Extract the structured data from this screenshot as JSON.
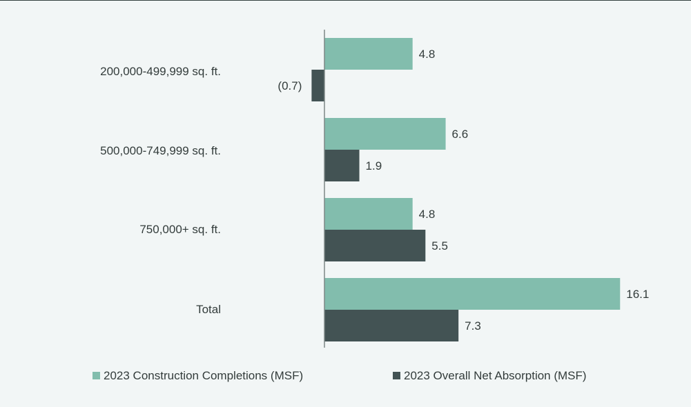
{
  "chart_data": {
    "type": "bar",
    "orientation": "horizontal",
    "categories": [
      "200,000-499,999 sq. ft.",
      "500,000-749,999 sq. ft.",
      "750,000+ sq. ft.",
      "Total"
    ],
    "series": [
      {
        "name": "2023 Construction Completions (MSF)",
        "color": "#82bdad",
        "values": [
          4.8,
          6.6,
          4.8,
          16.1
        ],
        "labels": [
          "4.8",
          "6.6",
          "4.8",
          "16.1"
        ]
      },
      {
        "name": "2023 Overall Net Absorption (MSF)",
        "color": "#435354",
        "values": [
          -0.7,
          1.9,
          5.5,
          7.3
        ],
        "labels": [
          "(0.7)",
          "1.9",
          "5.5",
          "7.3"
        ]
      }
    ],
    "xlim": [
      -0.7,
      16.1
    ],
    "legend": "bottom",
    "grid": false
  }
}
